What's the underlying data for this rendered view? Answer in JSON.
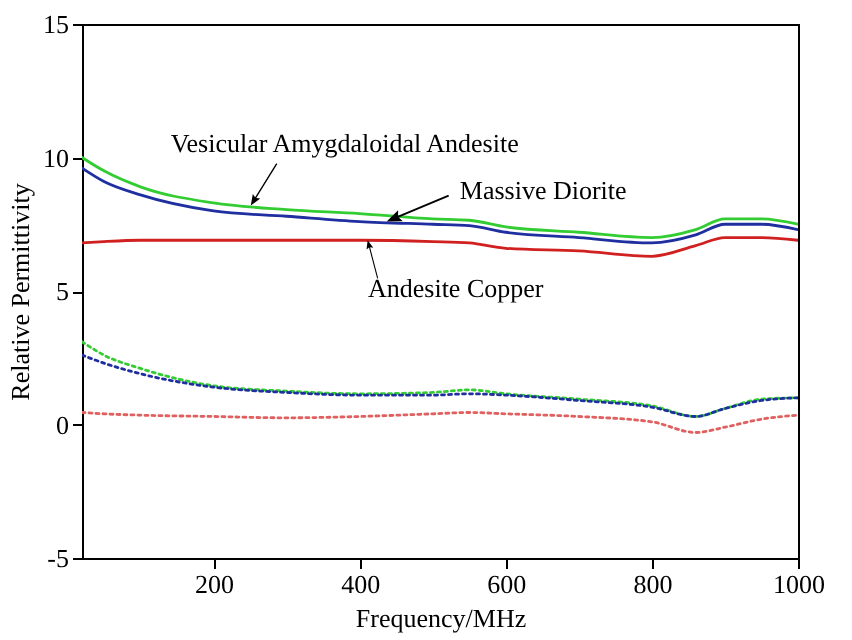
{
  "chart_data": {
    "type": "line",
    "xlabel": "Frequency/MHz",
    "ylabel": "Relative Permittivity",
    "x": [
      20,
      50,
      100,
      200,
      300,
      400,
      500,
      550,
      600,
      700,
      800,
      860,
      900,
      950,
      1000
    ],
    "series": [
      {
        "color": "#33cc33",
        "line_style": "solid",
        "values": [
          10.0,
          9.5,
          8.9,
          8.3,
          8.05,
          7.9,
          7.7,
          7.65,
          7.4,
          7.2,
          7.0,
          7.3,
          7.7,
          7.7,
          7.5
        ]
      },
      {
        "color": "#1f2fa0",
        "line_style": "solid",
        "values": [
          9.6,
          9.1,
          8.6,
          8.0,
          7.8,
          7.6,
          7.5,
          7.45,
          7.2,
          7.0,
          6.8,
          7.1,
          7.5,
          7.5,
          7.3
        ]
      },
      {
        "color": "#d02020",
        "line_style": "solid",
        "values": [
          6.8,
          6.85,
          6.9,
          6.9,
          6.9,
          6.9,
          6.85,
          6.8,
          6.6,
          6.5,
          6.3,
          6.7,
          7.0,
          7.0,
          6.9
        ]
      },
      {
        "color": "#33cc33",
        "line_style": "dotted",
        "values": [
          3.1,
          2.6,
          2.1,
          1.45,
          1.25,
          1.15,
          1.2,
          1.3,
          1.15,
          0.95,
          0.7,
          0.3,
          0.6,
          0.95,
          1.0
        ]
      },
      {
        "color": "#1f2fa0",
        "line_style": "dotted",
        "values": [
          2.6,
          2.3,
          1.9,
          1.4,
          1.2,
          1.1,
          1.1,
          1.15,
          1.1,
          0.9,
          0.65,
          0.3,
          0.6,
          0.9,
          1.0
        ]
      },
      {
        "color": "#e06060",
        "line_style": "dotted",
        "values": [
          0.45,
          0.4,
          0.35,
          0.3,
          0.25,
          0.3,
          0.4,
          0.45,
          0.4,
          0.3,
          0.1,
          -0.3,
          -0.1,
          0.2,
          0.35
        ]
      }
    ],
    "xlim": [
      20,
      1000
    ],
    "xticks": [
      200,
      400,
      600,
      800,
      1000
    ],
    "ylim": [
      -5,
      15
    ],
    "yticks": [
      -5,
      0,
      5,
      10,
      15
    ],
    "grid": false,
    "marker": "none",
    "annotations": [
      {
        "text": "Vesicular Amygdaloidal Andesite",
        "x": 251,
        "y": 8.2
      },
      {
        "text": "Massive Diorite",
        "x": 437,
        "y": 7.6
      },
      {
        "text": "Andesite Copper",
        "x": 411,
        "y": 6.9
      }
    ]
  }
}
